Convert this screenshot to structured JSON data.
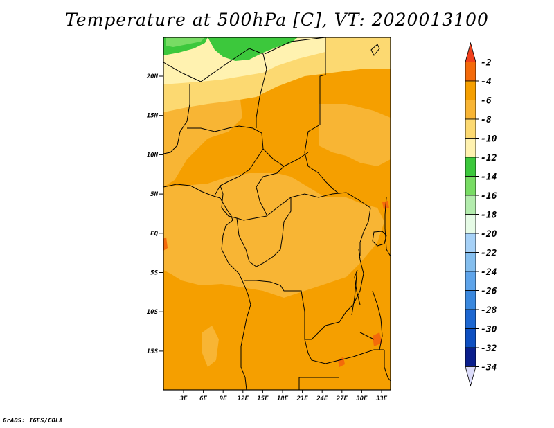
{
  "title": "Temperature at 500hPa [C], VT: 2020013100",
  "footer": "GrADS: IGES/COLA",
  "map": {
    "lat_labels": [
      "20N",
      "15N",
      "10N",
      "5N",
      "EQ",
      "5S",
      "10S",
      "15S"
    ],
    "lon_labels": [
      "3E",
      "6E",
      "9E",
      "12E",
      "15E",
      "18E",
      "21E",
      "24E",
      "27E",
      "30E",
      "33E"
    ]
  },
  "legend": {
    "labels": [
      "-2",
      "-4",
      "-6",
      "-8",
      "-10",
      "-12",
      "-14",
      "-16",
      "-18",
      "-20",
      "-22",
      "-24",
      "-26",
      "-28",
      "-30",
      "-32",
      "-34"
    ],
    "colors": [
      "#f0401c",
      "#f46a0a",
      "#f59f00",
      "#f8b534",
      "#fcd971",
      "#fff2b0",
      "#3cc83c",
      "#78dc64",
      "#b3ecad",
      "#e6fbe6",
      "#a6d1f7",
      "#84beee",
      "#5ea4ea",
      "#3a88de",
      "#1d67d1",
      "#0e4fc1",
      "#0a1e8c",
      "#dcdcfa"
    ]
  }
}
